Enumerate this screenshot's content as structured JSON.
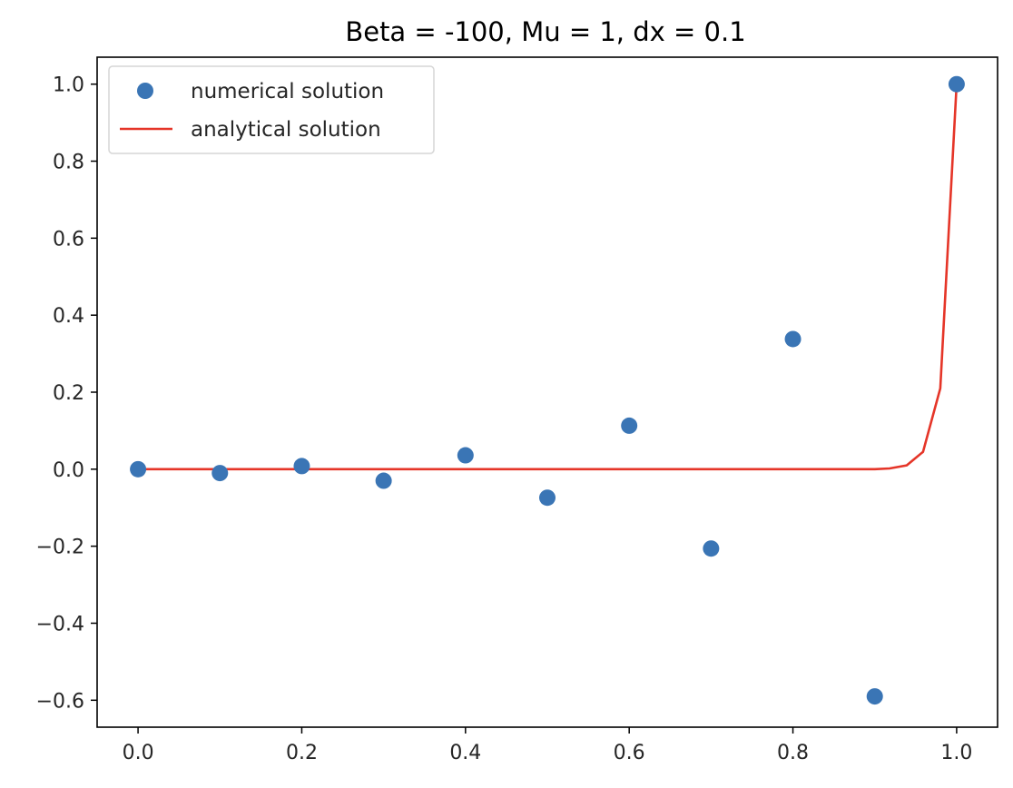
{
  "chart_data": {
    "type": "scatter",
    "title": "Beta = -100, Mu = 1, dx = 0.1",
    "xlabel": "",
    "ylabel": "",
    "xlim": [
      -0.05,
      1.05
    ],
    "ylim": [
      -0.67,
      1.07
    ],
    "x_ticks": [
      0.0,
      0.2,
      0.4,
      0.6,
      0.8,
      1.0
    ],
    "x_tick_labels": [
      "0.0",
      "0.2",
      "0.4",
      "0.6",
      "0.8",
      "1.0"
    ],
    "y_ticks": [
      -0.6,
      -0.4,
      -0.2,
      0.0,
      0.2,
      0.4,
      0.6,
      0.8,
      1.0
    ],
    "y_tick_labels": [
      "−0.6",
      "−0.4",
      "−0.2",
      "0.0",
      "0.2",
      "0.4",
      "0.6",
      "0.8",
      "1.0"
    ],
    "grid": false,
    "legend_position": "upper-left",
    "series": [
      {
        "name": "numerical solution",
        "kind": "markers",
        "color": "#3a75b5",
        "x": [
          0.0,
          0.1,
          0.2,
          0.3,
          0.4,
          0.5,
          0.6,
          0.7,
          0.8,
          0.9,
          1.0
        ],
        "y": [
          0.0,
          -0.01,
          0.008,
          -0.03,
          0.036,
          -0.074,
          0.113,
          -0.206,
          0.338,
          -0.59,
          1.0
        ]
      },
      {
        "name": "analytical solution",
        "kind": "line",
        "color": "#e53528",
        "x": [
          0.0,
          0.5,
          0.9,
          0.918,
          0.939,
          0.959,
          0.98,
          1.0
        ],
        "y": [
          0.0,
          0.0,
          0.0,
          0.002,
          0.01,
          0.045,
          0.21,
          1.0
        ]
      }
    ]
  }
}
